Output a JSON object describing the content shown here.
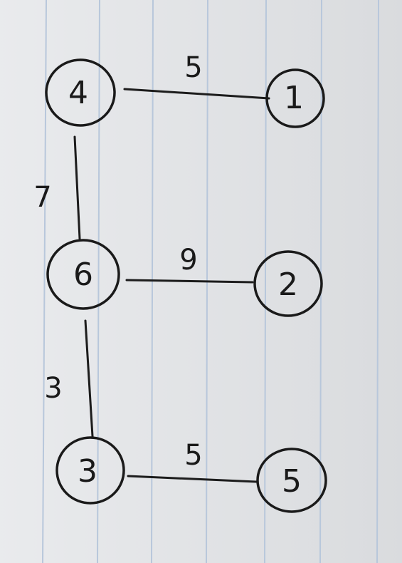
{
  "diagram": {
    "type": "weighted-graph",
    "nodes": [
      {
        "id": "n4",
        "label": "4"
      },
      {
        "id": "n1",
        "label": "1"
      },
      {
        "id": "n6",
        "label": "6"
      },
      {
        "id": "n2",
        "label": "2"
      },
      {
        "id": "n3",
        "label": "3"
      },
      {
        "id": "n5",
        "label": "5"
      }
    ],
    "edges": [
      {
        "from": "4",
        "to": "1",
        "weight": "5"
      },
      {
        "from": "4",
        "to": "6",
        "weight": "7"
      },
      {
        "from": "6",
        "to": "2",
        "weight": "9"
      },
      {
        "from": "6",
        "to": "3",
        "weight": "3"
      },
      {
        "from": "3",
        "to": "5",
        "weight": "5"
      }
    ]
  },
  "colors": {
    "paper": "#e2e4e7",
    "rule_line": "#b8c7db",
    "ink": "#1a1a1a"
  }
}
